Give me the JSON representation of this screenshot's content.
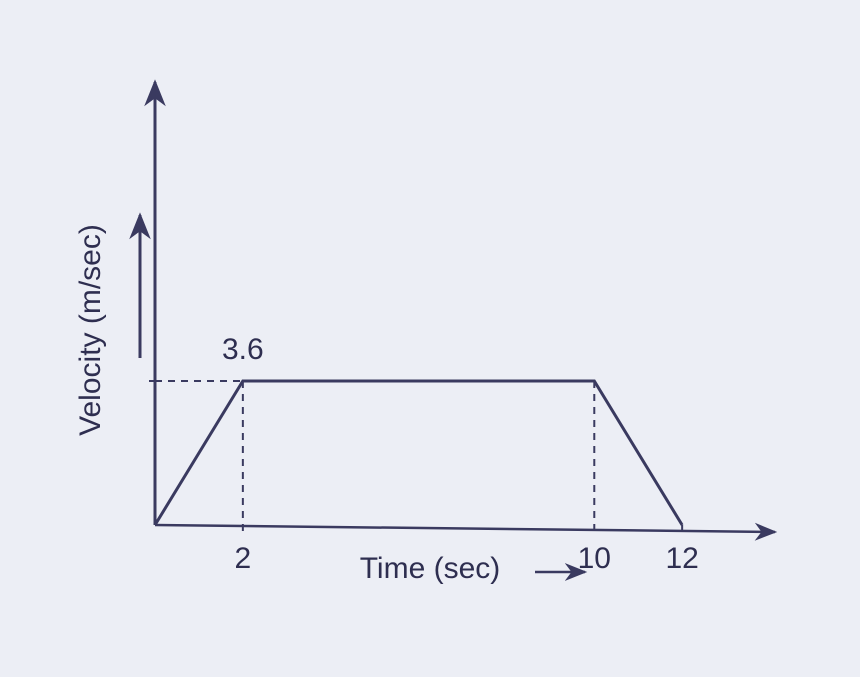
{
  "chart_data": {
    "type": "line",
    "xlabel": "Time (sec)",
    "ylabel": "Velocity (m/sec)",
    "x": [
      0,
      2,
      10,
      12
    ],
    "values": [
      0,
      3.6,
      3.6,
      0
    ],
    "color": "#3a3a60",
    "xlim": [
      0,
      14
    ],
    "ylim": [
      0,
      11
    ],
    "xticks": [
      2,
      10,
      12
    ],
    "yticks": [
      3.6
    ],
    "grid": false
  }
}
